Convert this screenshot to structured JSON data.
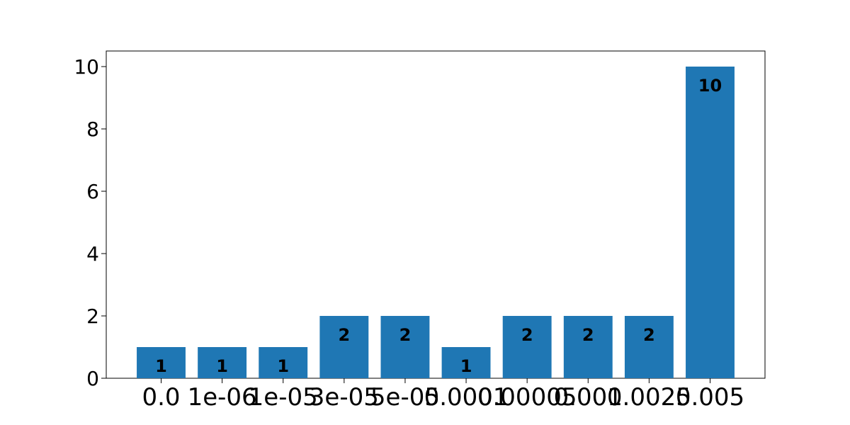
{
  "chart_data": {
    "type": "bar",
    "title": "",
    "xlabel": "",
    "ylabel": "",
    "categories": [
      "0.0",
      "1e-06",
      "1e-05",
      "3e-05",
      "5e-05",
      "0.0001",
      "0.00005",
      "0.001",
      "0.0025",
      "0.005"
    ],
    "values": [
      1,
      1,
      1,
      2,
      2,
      1,
      2,
      2,
      2,
      10
    ],
    "data_labels": [
      "1",
      "1",
      "1",
      "2",
      "2",
      "1",
      "2",
      "2",
      "2",
      "10"
    ],
    "ylim": [
      0,
      10.5
    ],
    "yticks": [
      0,
      2,
      4,
      6,
      8,
      10
    ],
    "ytick_labels": [
      "0",
      "2",
      "4",
      "6",
      "8",
      "10"
    ],
    "grid": false,
    "legend": "none",
    "colors": {
      "bar": "#1f77b4",
      "axis": "#000000",
      "background": "#ffffff"
    }
  }
}
